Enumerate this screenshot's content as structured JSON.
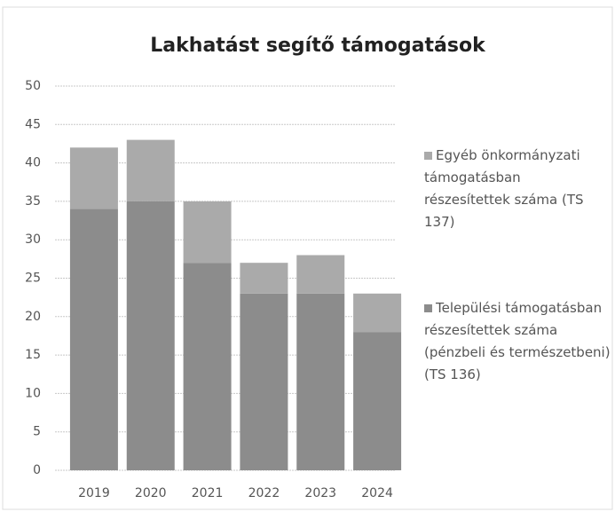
{
  "chart_data": {
    "type": "stacked_bar",
    "title": "Lakhatást segítő támogatások",
    "categories": [
      "2019",
      "2020",
      "2021",
      "2022",
      "2023",
      "2024"
    ],
    "series": [
      {
        "name": "Települési támogatásban részesítettek száma (pénzbeli és természetbeni) (TS 136)",
        "color": "#8c8c8c",
        "values": [
          34,
          35,
          27,
          23,
          23,
          18
        ]
      },
      {
        "name": "Egyéb önkormányzati támogatásban részesítettek száma (TS 137)",
        "color": "#aaaaaa",
        "values": [
          8,
          8,
          8,
          4,
          5,
          5
        ]
      }
    ],
    "ylim": [
      0,
      50
    ],
    "yticks": [
      0,
      5,
      10,
      15,
      20,
      25,
      30,
      35,
      40,
      45,
      50
    ],
    "grid": true,
    "legend": "right"
  }
}
